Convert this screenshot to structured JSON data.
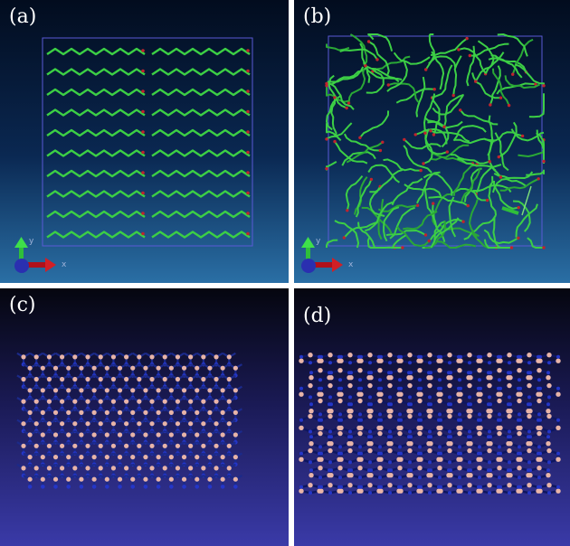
{
  "panels": {
    "a": {
      "label": "(a)",
      "axis_x": "x",
      "axis_y": "y"
    },
    "b": {
      "label": "(b)",
      "axis_x": "x",
      "axis_y": "y"
    },
    "c": {
      "label": "(c)"
    },
    "d": {
      "label": "(d)"
    }
  },
  "colors": {
    "md_bg_top": "#020c1e",
    "md_bg_bottom": "#2a6fa5",
    "chain": "#3ccf45",
    "oxygen": "#c0232d",
    "box": "#5a5ad6",
    "bn_bg_top": "#05060f",
    "bn_bg_bottom": "#3a3aa8",
    "boron": "#e8b4a8",
    "nitrogen": "#2436c8"
  },
  "icons": [
    "xyz-axis-triad-icon"
  ]
}
